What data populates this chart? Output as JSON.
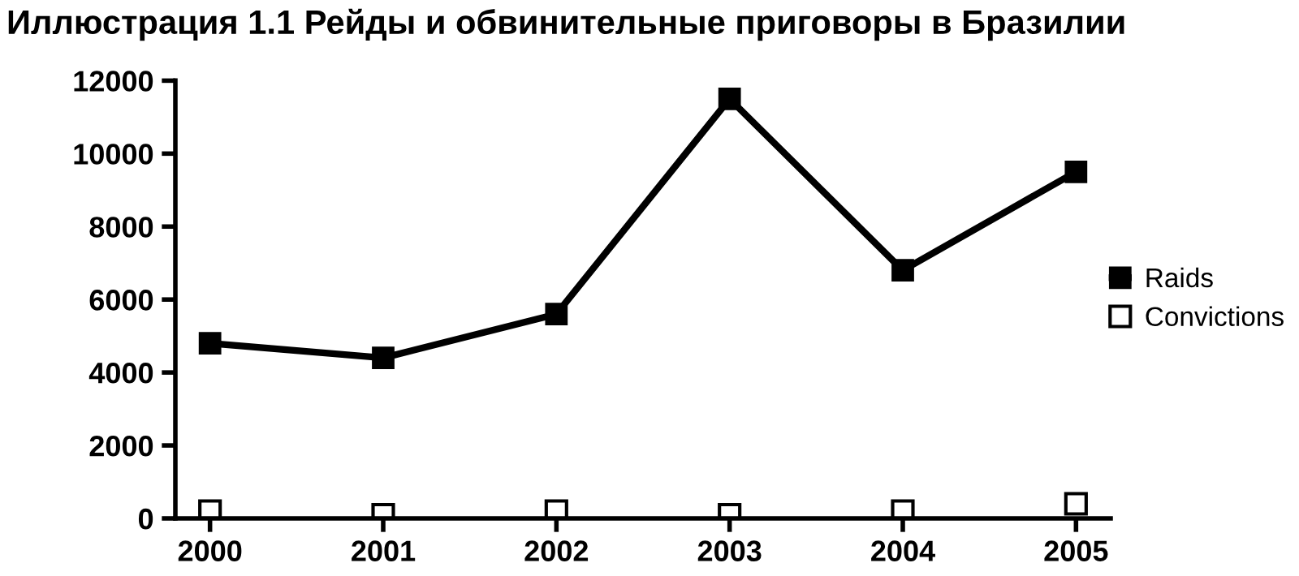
{
  "chart_data": {
    "type": "line",
    "title": "Иллюстрация 1.1 Рейды и обвинительные приговоры в Бразилии",
    "categories": [
      "2000",
      "2001",
      "2002",
      "2003",
      "2004",
      "2005"
    ],
    "series": [
      {
        "name": "Raids",
        "color": "#000000",
        "marker": "square",
        "values": [
          4800,
          4400,
          5600,
          11500,
          6800,
          9500
        ]
      },
      {
        "name": "Convictions",
        "type": "scatter",
        "color": "#ffffff",
        "marker": "square",
        "values": [
          200,
          100,
          200,
          100,
          200,
          400
        ]
      }
    ],
    "ylim": [
      0,
      12000
    ],
    "yticks": [
      0,
      2000,
      4000,
      6000,
      8000,
      10000,
      12000
    ],
    "grid": false,
    "legend": "right",
    "line_style": "solid"
  }
}
